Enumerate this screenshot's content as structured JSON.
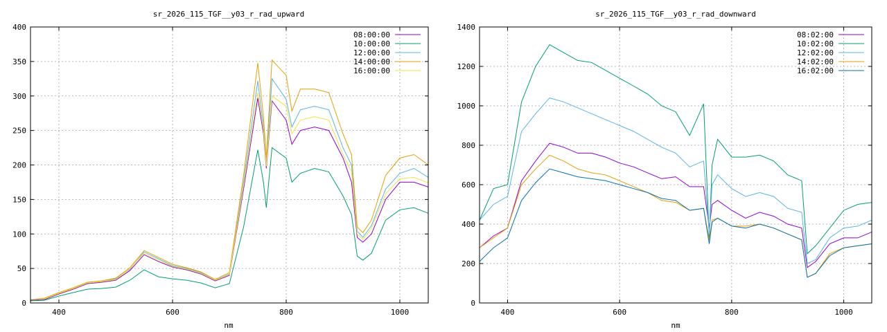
{
  "chart_data": [
    {
      "type": "line",
      "title": "sr_2026_115_TGF__y03_r_rad_upward",
      "xlabel": "nm",
      "ylabel": "",
      "xlim": [
        350,
        1050
      ],
      "ylim": [
        0,
        400
      ],
      "xticks": [
        400,
        600,
        800,
        1000
      ],
      "yticks": [
        0,
        50,
        100,
        150,
        200,
        250,
        300,
        350,
        400
      ],
      "grid": true,
      "legend_position": "top-right",
      "x": [
        350,
        375,
        400,
        425,
        450,
        475,
        500,
        525,
        550,
        575,
        600,
        625,
        650,
        675,
        700,
        725,
        750,
        760,
        765,
        775,
        800,
        810,
        825,
        850,
        875,
        900,
        915,
        925,
        935,
        950,
        975,
        1000,
        1025,
        1050
      ],
      "series": [
        {
          "name": "08:00:00",
          "color": "#9400d3",
          "values": [
            4,
            5,
            13,
            20,
            28,
            30,
            33,
            47,
            70,
            60,
            52,
            48,
            42,
            32,
            40,
            165,
            297,
            245,
            195,
            293,
            265,
            230,
            250,
            255,
            250,
            210,
            175,
            95,
            88,
            100,
            150,
            175,
            175,
            168
          ]
        },
        {
          "name": "10:00:00",
          "color": "#009e73",
          "values": [
            3,
            4,
            10,
            15,
            20,
            21,
            23,
            33,
            48,
            38,
            35,
            33,
            29,
            22,
            28,
            110,
            222,
            175,
            138,
            225,
            210,
            175,
            188,
            195,
            190,
            155,
            128,
            68,
            62,
            72,
            120,
            135,
            138,
            130
          ]
        },
        {
          "name": "12:00:00",
          "color": "#56b4e9",
          "values": [
            5,
            6,
            14,
            21,
            29,
            31,
            35,
            49,
            74,
            64,
            54,
            50,
            44,
            33,
            42,
            175,
            322,
            255,
            200,
            325,
            295,
            255,
            280,
            285,
            280,
            225,
            200,
            104,
            95,
            112,
            165,
            188,
            195,
            182
          ]
        },
        {
          "name": "14:00:00",
          "color": "#e69f00",
          "values": [
            5,
            7,
            15,
            22,
            30,
            32,
            36,
            51,
            76,
            66,
            56,
            51,
            45,
            34,
            44,
            185,
            348,
            270,
            210,
            352,
            330,
            278,
            310,
            310,
            305,
            245,
            215,
            110,
            102,
            120,
            185,
            210,
            215,
            200
          ]
        },
        {
          "name": "16:00:00",
          "color": "#f0e442",
          "values": [
            5,
            6,
            14,
            21,
            29,
            31,
            34,
            50,
            72,
            62,
            53,
            49,
            43,
            33,
            41,
            170,
            305,
            250,
            198,
            300,
            285,
            245,
            265,
            270,
            265,
            215,
            190,
            100,
            92,
            108,
            158,
            180,
            182,
            174
          ]
        }
      ]
    },
    {
      "type": "line",
      "title": "sr_2026_115_TGF__y03_r_rad_downward",
      "xlabel": "nm",
      "ylabel": "",
      "xlim": [
        350,
        1050
      ],
      "ylim": [
        0,
        1400
      ],
      "xticks": [
        400,
        600,
        800,
        1000
      ],
      "yticks": [
        0,
        200,
        400,
        600,
        800,
        1000,
        1200,
        1400
      ],
      "grid": true,
      "legend_position": "top-right",
      "x": [
        350,
        375,
        400,
        425,
        450,
        475,
        500,
        525,
        550,
        575,
        600,
        625,
        650,
        675,
        700,
        725,
        750,
        760,
        765,
        775,
        800,
        825,
        850,
        875,
        900,
        925,
        935,
        950,
        975,
        1000,
        1025,
        1050
      ],
      "series": [
        {
          "name": "08:02:00",
          "color": "#9400d3",
          "values": [
            280,
            340,
            380,
            620,
            720,
            810,
            790,
            760,
            760,
            740,
            710,
            690,
            660,
            630,
            640,
            590,
            590,
            380,
            500,
            520,
            470,
            430,
            460,
            440,
            400,
            380,
            180,
            210,
            300,
            330,
            330,
            360
          ]
        },
        {
          "name": "10:02:00",
          "color": "#009e73",
          "values": [
            420,
            580,
            600,
            1020,
            1200,
            1310,
            1270,
            1230,
            1220,
            1180,
            1140,
            1100,
            1060,
            1000,
            970,
            850,
            1010,
            330,
            700,
            830,
            740,
            740,
            750,
            720,
            650,
            620,
            250,
            290,
            380,
            470,
            500,
            510
          ]
        },
        {
          "name": "12:02:00",
          "color": "#56b4e9",
          "values": [
            420,
            500,
            540,
            870,
            960,
            1040,
            1020,
            990,
            960,
            930,
            900,
            870,
            830,
            790,
            760,
            690,
            720,
            350,
            600,
            650,
            580,
            540,
            560,
            540,
            480,
            460,
            200,
            220,
            330,
            380,
            390,
            420
          ]
        },
        {
          "name": "14:02:00",
          "color": "#e69f00",
          "values": [
            280,
            330,
            380,
            600,
            680,
            750,
            720,
            680,
            660,
            650,
            620,
            590,
            560,
            520,
            510,
            470,
            480,
            320,
            420,
            430,
            390,
            390,
            400,
            380,
            350,
            320,
            130,
            150,
            250,
            280,
            290,
            300
          ]
        },
        {
          "name": "16:02:00",
          "color": "#0072b2",
          "values": [
            210,
            280,
            330,
            520,
            610,
            680,
            660,
            640,
            630,
            620,
            600,
            580,
            560,
            530,
            520,
            470,
            480,
            300,
            410,
            430,
            390,
            380,
            400,
            380,
            350,
            320,
            130,
            150,
            240,
            280,
            290,
            300
          ]
        }
      ]
    }
  ]
}
